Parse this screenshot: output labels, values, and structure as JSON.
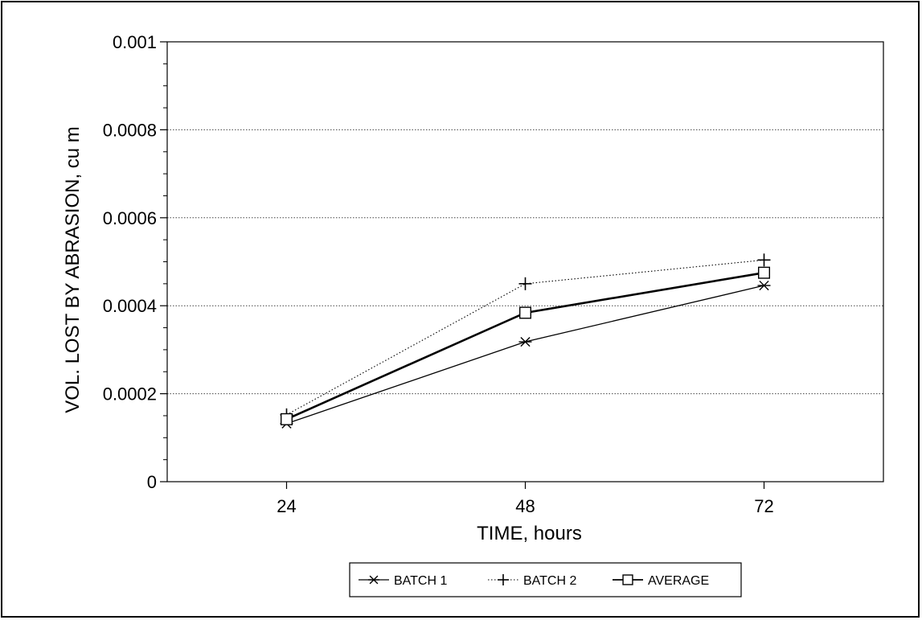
{
  "chart_data": {
    "type": "line",
    "title": "",
    "xlabel": "TIME, hours",
    "ylabel": "VOL. LOST BY ABRASION, cu m",
    "x": [
      24,
      48,
      72
    ],
    "x_tick_labels": [
      "24",
      "48",
      "72"
    ],
    "xlim": [
      12,
      84
    ],
    "ylim": [
      0,
      0.001
    ],
    "y_ticks": [
      0,
      0.0002,
      0.0004,
      0.0006,
      0.0008,
      0.001
    ],
    "y_tick_labels": [
      "0",
      "0.0002",
      "0.0004",
      "0.0006",
      "0.0008",
      "0.001"
    ],
    "grid": "horizontal dotted",
    "legend_position": "bottom-center",
    "series": [
      {
        "name": "BATCH 1",
        "marker": "asterisk",
        "line_style": "solid-thin",
        "values": [
          0.000132,
          0.000318,
          0.000446
        ]
      },
      {
        "name": "BATCH 2",
        "marker": "plus",
        "line_style": "dotted",
        "values": [
          0.000152,
          0.00045,
          0.000504
        ]
      },
      {
        "name": "AVERAGE",
        "marker": "square",
        "line_style": "solid-thick",
        "values": [
          0.000142,
          0.000384,
          0.000475
        ]
      }
    ]
  }
}
